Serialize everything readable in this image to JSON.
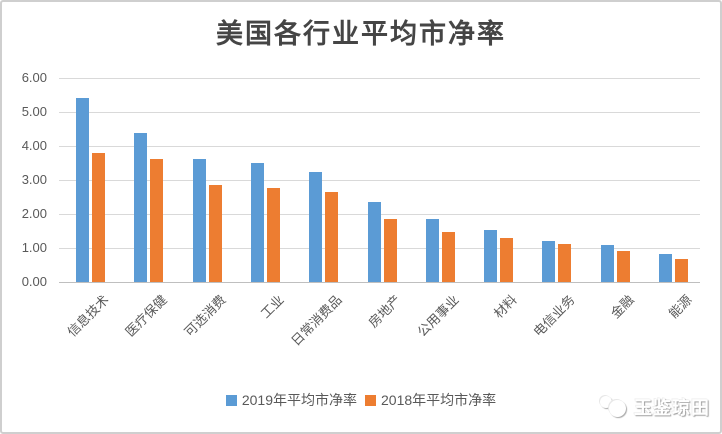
{
  "title": "美国各行业平均市净率",
  "chart_data": {
    "type": "bar",
    "title": "美国各行业平均市净率",
    "categories": [
      "信息技术",
      "医疗保健",
      "可选消费",
      "工业",
      "日常消费品",
      "房地产",
      "公用事业",
      "材料",
      "电信业务",
      "金融",
      "能源"
    ],
    "series": [
      {
        "name": "2019年平均市净率",
        "color": "#5B9BD5",
        "values": [
          5.42,
          4.37,
          3.62,
          3.51,
          3.24,
          2.36,
          1.85,
          1.53,
          1.21,
          1.08,
          0.83
        ]
      },
      {
        "name": "2018年平均市净率",
        "color": "#ED7D31",
        "values": [
          3.8,
          3.63,
          2.85,
          2.76,
          2.66,
          1.84,
          1.48,
          1.28,
          1.13,
          0.9,
          0.67
        ]
      }
    ],
    "xlabel": "",
    "ylabel": "",
    "ylim": [
      0,
      6
    ],
    "yticks": [
      "0.00",
      "1.00",
      "2.00",
      "3.00",
      "4.00",
      "5.00",
      "6.00"
    ],
    "grid": true,
    "legend_position": "bottom"
  },
  "watermark": {
    "text": "玉鉴琼田"
  },
  "colors": {
    "grid": "#d9d9d9",
    "axis_text": "#595959",
    "title_text": "#454545",
    "series_2019": "#5B9BD5",
    "series_2018": "#ED7D31",
    "frame_border": "#cfcfcf"
  }
}
